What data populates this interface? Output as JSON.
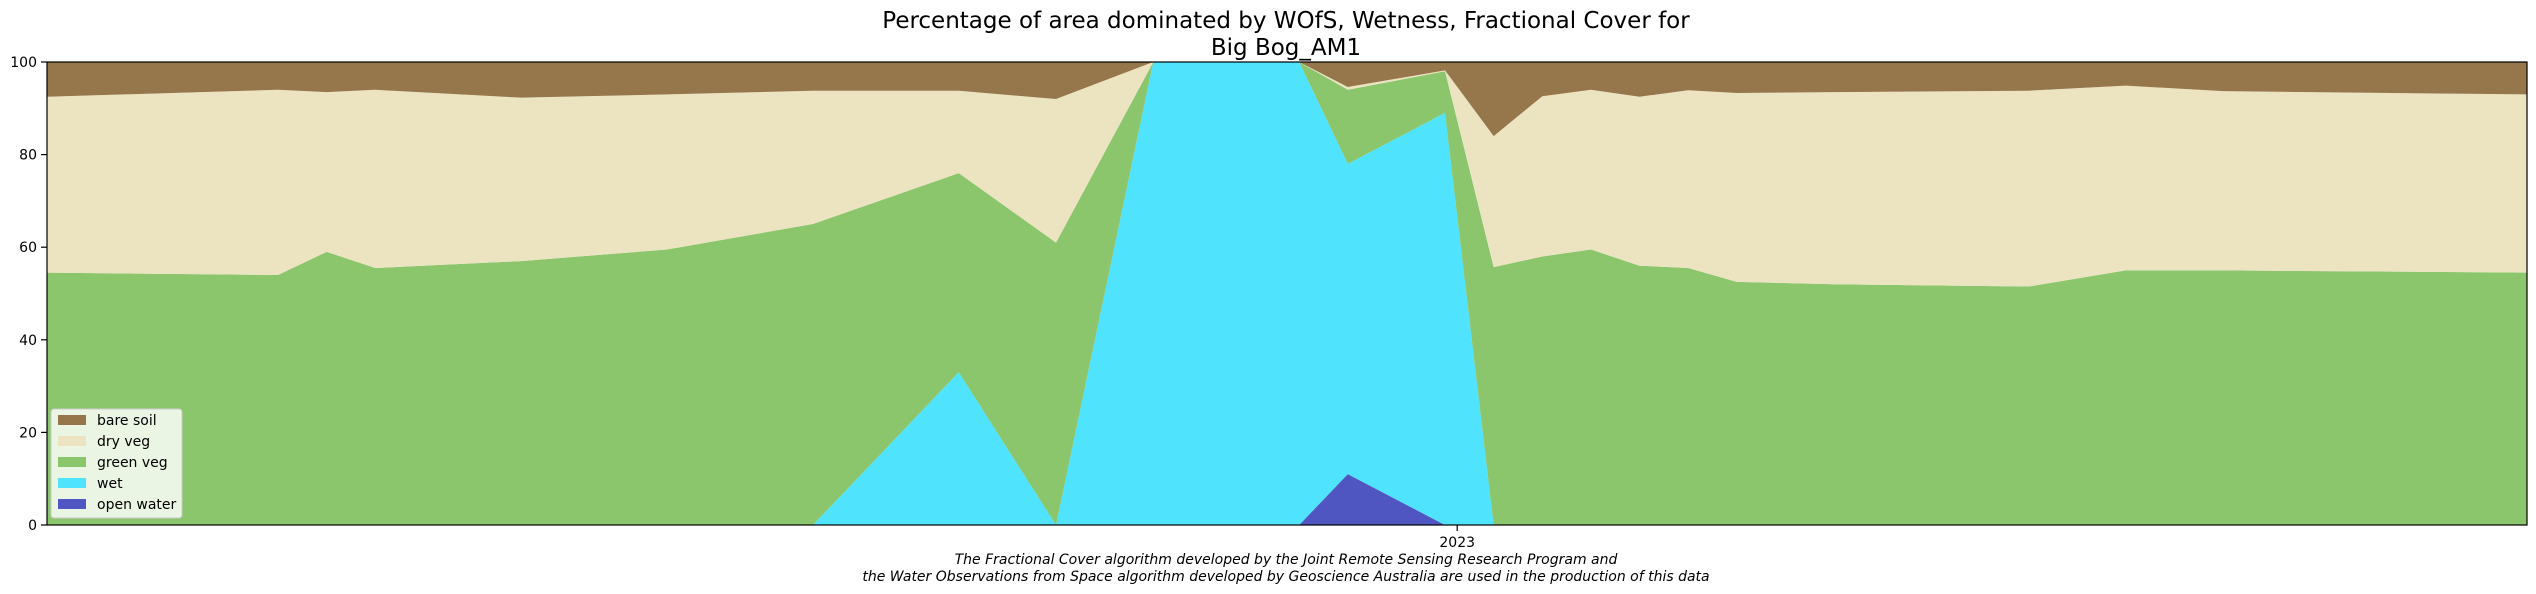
{
  "chart_data": {
    "type": "area",
    "stacked": true,
    "title_line1": "Percentage of area dominated by WOfS, Wetness, Fractional Cover for",
    "title_line2": "Big Bog_AM1",
    "xlabel": "",
    "ylabel": "",
    "ylim": [
      0,
      100
    ],
    "yticks": [
      0,
      20,
      40,
      60,
      80,
      100
    ],
    "xlim": [
      "2022-05-14",
      "2023-06-26"
    ],
    "xticks": [
      {
        "date": "2023-01-01",
        "label": "2023"
      }
    ],
    "grid": false,
    "legend_position": "lower-left",
    "x": [
      "2022-05-14",
      "2022-06-21",
      "2022-06-29",
      "2022-07-07",
      "2022-07-31",
      "2022-08-24",
      "2022-09-17",
      "2022-10-11",
      "2022-10-27",
      "2022-11-12",
      "2022-12-06",
      "2022-12-14",
      "2022-12-30",
      "2023-01-07",
      "2023-01-15",
      "2023-01-23",
      "2023-01-31",
      "2023-02-08",
      "2023-02-16",
      "2023-03-04",
      "2023-04-05",
      "2023-04-21",
      "2023-05-07",
      "2023-06-26"
    ],
    "series": [
      {
        "name": "open water",
        "color": "#4f56c2",
        "values": [
          0,
          0,
          0,
          0,
          0,
          0,
          0,
          0,
          0,
          0,
          0,
          11,
          0,
          0,
          0,
          0,
          0,
          0,
          0,
          0,
          0,
          0,
          0,
          0
        ]
      },
      {
        "name": "wet",
        "color": "#4fe3fd",
        "values": [
          0,
          0,
          0,
          0,
          0,
          0,
          0,
          33,
          0,
          100,
          100,
          67,
          89,
          0,
          0,
          0,
          0,
          0,
          0,
          0,
          0,
          0,
          0,
          0
        ]
      },
      {
        "name": "green veg",
        "color": "#8bc56c",
        "values": [
          54.5,
          54,
          59,
          55.5,
          57,
          59.5,
          65,
          43,
          61,
          0,
          0,
          16,
          9,
          55.7,
          58,
          59.5,
          56,
          55.5,
          52.5,
          52,
          51.5,
          55,
          55,
          54.5
        ]
      },
      {
        "name": "dry veg",
        "color": "#ece4c1",
        "values": [
          38,
          40,
          34.5,
          38.5,
          35.3,
          33.5,
          28.8,
          17.8,
          31,
          0,
          0,
          0.6,
          0.2,
          28.3,
          34.6,
          34.5,
          36.5,
          38.4,
          40.8,
          41.5,
          42.3,
          39.9,
          38.7,
          38.5
        ]
      },
      {
        "name": "bare soil",
        "color": "#96764b",
        "values": [
          7.5,
          6,
          6.5,
          6,
          7.7,
          7,
          6.2,
          6.2,
          8,
          0,
          0,
          5.4,
          1.8,
          16,
          7.4,
          6,
          7.5,
          6.1,
          6.7,
          6.5,
          6.2,
          5.1,
          6.3,
          7
        ]
      }
    ],
    "legend_order": [
      "bare soil",
      "dry veg",
      "green veg",
      "wet",
      "open water"
    ]
  },
  "footnote": {
    "line1": "The Fractional Cover algorithm developed by the Joint Remote Sensing Research Program and",
    "line2": "the Water Observations from Space algorithm developed by Geoscience Australia are used in the production of this data"
  }
}
